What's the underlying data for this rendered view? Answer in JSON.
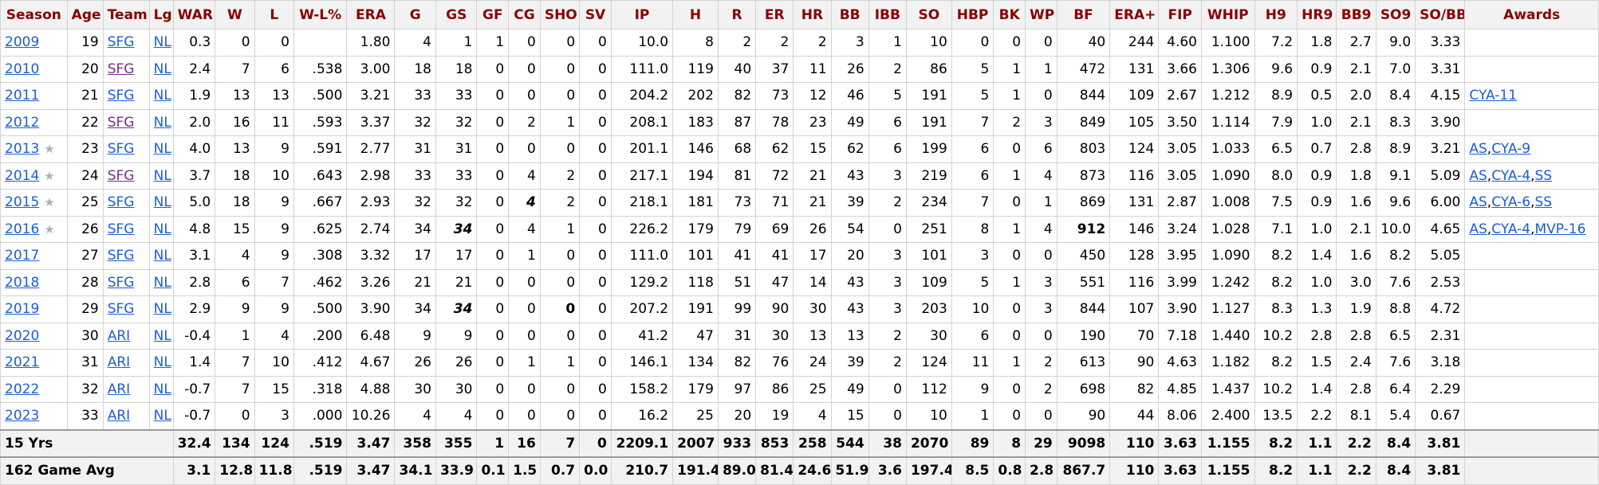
{
  "columns": [
    "Season",
    "Age",
    "Team",
    "Lg",
    "WAR",
    "W",
    "L",
    "W-L%",
    "ERA",
    "G",
    "GS",
    "GF",
    "CG",
    "SHO",
    "SV",
    "IP",
    "H",
    "R",
    "ER",
    "HR",
    "BB",
    "IBB",
    "SO",
    "HBP",
    "BK",
    "WP",
    "BF",
    "ERA+",
    "FIP",
    "WHIP",
    "H9",
    "HR9",
    "BB9",
    "SO9",
    "SO/BB",
    "Awards"
  ],
  "rows": [
    {
      "season": "2009",
      "allstar": false,
      "age": "19",
      "team": "SFG",
      "team_visited": false,
      "lg": "NL",
      "war": "0.3",
      "w": "0",
      "l": "0",
      "wlp": "",
      "era": "1.80",
      "g": "4",
      "gs": "1",
      "gf": "1",
      "cg": "0",
      "sho": "0",
      "sv": "0",
      "ip": "10.0",
      "h": "8",
      "r": "2",
      "er": "2",
      "hr": "2",
      "bb": "3",
      "ibb": "1",
      "so": "10",
      "hbp": "0",
      "bk": "0",
      "wp": "0",
      "bf": "40",
      "eraplus": "244",
      "fip": "4.60",
      "whip": "1.100",
      "h9": "7.2",
      "hr9": "1.8",
      "bb9": "2.7",
      "so9": "9.0",
      "sobb": "3.33",
      "awards": []
    },
    {
      "season": "2010",
      "allstar": false,
      "age": "20",
      "team": "SFG",
      "team_visited": true,
      "lg": "NL",
      "war": "2.4",
      "w": "7",
      "l": "6",
      "wlp": ".538",
      "era": "3.00",
      "g": "18",
      "gs": "18",
      "gf": "0",
      "cg": "0",
      "sho": "0",
      "sv": "0",
      "ip": "111.0",
      "h": "119",
      "r": "40",
      "er": "37",
      "hr": "11",
      "bb": "26",
      "ibb": "2",
      "so": "86",
      "hbp": "5",
      "bk": "1",
      "wp": "1",
      "bf": "472",
      "eraplus": "131",
      "fip": "3.66",
      "whip": "1.306",
      "h9": "9.6",
      "hr9": "0.9",
      "bb9": "2.1",
      "so9": "7.0",
      "sobb": "3.31",
      "awards": []
    },
    {
      "season": "2011",
      "allstar": false,
      "age": "21",
      "team": "SFG",
      "team_visited": false,
      "lg": "NL",
      "war": "1.9",
      "w": "13",
      "l": "13",
      "wlp": ".500",
      "era": "3.21",
      "g": "33",
      "gs": "33",
      "gf": "0",
      "cg": "0",
      "sho": "0",
      "sv": "0",
      "ip": "204.2",
      "h": "202",
      "r": "82",
      "er": "73",
      "hr": "12",
      "bb": "46",
      "ibb": "5",
      "so": "191",
      "hbp": "5",
      "bk": "1",
      "wp": "0",
      "bf": "844",
      "eraplus": "109",
      "fip": "2.67",
      "whip": "1.212",
      "h9": "8.9",
      "hr9": "0.5",
      "bb9": "2.0",
      "so9": "8.4",
      "sobb": "4.15",
      "awards": [
        "CYA-11"
      ]
    },
    {
      "season": "2012",
      "allstar": false,
      "age": "22",
      "team": "SFG",
      "team_visited": true,
      "lg": "NL",
      "war": "2.0",
      "w": "16",
      "l": "11",
      "wlp": ".593",
      "era": "3.37",
      "g": "32",
      "gs": "32",
      "gf": "0",
      "cg": "2",
      "sho": "1",
      "sv": "0",
      "ip": "208.1",
      "h": "183",
      "r": "87",
      "er": "78",
      "hr": "23",
      "bb": "49",
      "ibb": "6",
      "so": "191",
      "hbp": "7",
      "bk": "2",
      "wp": "3",
      "bf": "849",
      "eraplus": "105",
      "fip": "3.50",
      "whip": "1.114",
      "h9": "7.9",
      "hr9": "1.0",
      "bb9": "2.1",
      "so9": "8.3",
      "sobb": "3.90",
      "awards": []
    },
    {
      "season": "2013",
      "allstar": true,
      "age": "23",
      "team": "SFG",
      "team_visited": false,
      "lg": "NL",
      "war": "4.0",
      "w": "13",
      "l": "9",
      "wlp": ".591",
      "era": "2.77",
      "g": "31",
      "gs": "31",
      "gf": "0",
      "cg": "0",
      "sho": "0",
      "sv": "0",
      "ip": "201.1",
      "h": "146",
      "r": "68",
      "er": "62",
      "hr": "15",
      "bb": "62",
      "ibb": "6",
      "so": "199",
      "hbp": "6",
      "bk": "0",
      "wp": "6",
      "bf": "803",
      "eraplus": "124",
      "fip": "3.05",
      "whip": "1.033",
      "h9": "6.5",
      "hr9": "0.7",
      "bb9": "2.8",
      "so9": "8.9",
      "sobb": "3.21",
      "awards": [
        "AS",
        "CYA-9"
      ]
    },
    {
      "season": "2014",
      "allstar": true,
      "age": "24",
      "team": "SFG",
      "team_visited": true,
      "lg": "NL",
      "war": "3.7",
      "w": "18",
      "l": "10",
      "wlp": ".643",
      "era": "2.98",
      "g": "33",
      "gs": "33",
      "gf": "0",
      "cg": "4",
      "sho": "2",
      "sv": "0",
      "ip": "217.1",
      "h": "194",
      "r": "81",
      "er": "72",
      "hr": "21",
      "bb": "43",
      "ibb": "3",
      "so": "219",
      "hbp": "6",
      "bk": "1",
      "wp": "4",
      "bf": "873",
      "eraplus": "116",
      "fip": "3.05",
      "whip": "1.090",
      "h9": "8.0",
      "hr9": "0.9",
      "bb9": "1.8",
      "so9": "9.1",
      "sobb": "5.09",
      "awards": [
        "AS",
        "CYA-4",
        "SS"
      ]
    },
    {
      "season": "2015",
      "allstar": true,
      "age": "25",
      "team": "SFG",
      "team_visited": false,
      "lg": "NL",
      "war": "5.0",
      "w": "18",
      "l": "9",
      "wlp": ".667",
      "era": "2.93",
      "g": "32",
      "gs": "32",
      "gf": "0",
      "cg": "4",
      "sho": "2",
      "sv": "0",
      "ip": "218.1",
      "h": "181",
      "r": "73",
      "er": "71",
      "hr": "21",
      "bb": "39",
      "ibb": "2",
      "so": "234",
      "hbp": "7",
      "bk": "0",
      "wp": "1",
      "bf": "869",
      "eraplus": "131",
      "fip": "2.87",
      "whip": "1.008",
      "h9": "7.5",
      "hr9": "0.9",
      "bb9": "1.6",
      "so9": "9.6",
      "sobb": "6.00",
      "awards": [
        "AS",
        "CYA-6",
        "SS"
      ]
    },
    {
      "season": "2016",
      "allstar": true,
      "age": "26",
      "team": "SFG",
      "team_visited": false,
      "lg": "NL",
      "war": "4.8",
      "w": "15",
      "l": "9",
      "wlp": ".625",
      "era": "2.74",
      "g": "34",
      "gs": "34",
      "gf": "0",
      "cg": "4",
      "sho": "1",
      "sv": "0",
      "ip": "226.2",
      "h": "179",
      "r": "79",
      "er": "69",
      "hr": "26",
      "bb": "54",
      "ibb": "0",
      "so": "251",
      "hbp": "8",
      "bk": "1",
      "wp": "4",
      "bf": "912",
      "eraplus": "146",
      "fip": "3.24",
      "whip": "1.028",
      "h9": "7.1",
      "hr9": "1.0",
      "bb9": "2.1",
      "so9": "10.0",
      "sobb": "4.65",
      "awards": [
        "AS",
        "CYA-4",
        "MVP-16"
      ]
    },
    {
      "season": "2017",
      "allstar": false,
      "age": "27",
      "team": "SFG",
      "team_visited": false,
      "lg": "NL",
      "war": "3.1",
      "w": "4",
      "l": "9",
      "wlp": ".308",
      "era": "3.32",
      "g": "17",
      "gs": "17",
      "gf": "0",
      "cg": "1",
      "sho": "0",
      "sv": "0",
      "ip": "111.0",
      "h": "101",
      "r": "41",
      "er": "41",
      "hr": "17",
      "bb": "20",
      "ibb": "3",
      "so": "101",
      "hbp": "3",
      "bk": "0",
      "wp": "0",
      "bf": "450",
      "eraplus": "128",
      "fip": "3.95",
      "whip": "1.090",
      "h9": "8.2",
      "hr9": "1.4",
      "bb9": "1.6",
      "so9": "8.2",
      "sobb": "5.05",
      "awards": []
    },
    {
      "season": "2018",
      "allstar": false,
      "age": "28",
      "team": "SFG",
      "team_visited": false,
      "lg": "NL",
      "war": "2.8",
      "w": "6",
      "l": "7",
      "wlp": ".462",
      "era": "3.26",
      "g": "21",
      "gs": "21",
      "gf": "0",
      "cg": "0",
      "sho": "0",
      "sv": "0",
      "ip": "129.2",
      "h": "118",
      "r": "51",
      "er": "47",
      "hr": "14",
      "bb": "43",
      "ibb": "3",
      "so": "109",
      "hbp": "5",
      "bk": "1",
      "wp": "3",
      "bf": "551",
      "eraplus": "116",
      "fip": "3.99",
      "whip": "1.242",
      "h9": "8.2",
      "hr9": "1.0",
      "bb9": "3.0",
      "so9": "7.6",
      "sobb": "2.53",
      "awards": []
    },
    {
      "season": "2019",
      "allstar": false,
      "age": "29",
      "team": "SFG",
      "team_visited": false,
      "lg": "NL",
      "war": "2.9",
      "w": "9",
      "l": "9",
      "wlp": ".500",
      "era": "3.90",
      "g": "34",
      "gs": "34",
      "gf": "0",
      "cg": "0",
      "sho": "0",
      "sv": "0",
      "ip": "207.2",
      "h": "191",
      "r": "99",
      "er": "90",
      "hr": "30",
      "bb": "43",
      "ibb": "3",
      "so": "203",
      "hbp": "10",
      "bk": "0",
      "wp": "3",
      "bf": "844",
      "eraplus": "107",
      "fip": "3.90",
      "whip": "1.127",
      "h9": "8.3",
      "hr9": "1.3",
      "bb9": "1.9",
      "so9": "8.8",
      "sobb": "4.72",
      "awards": []
    },
    {
      "season": "2020",
      "allstar": false,
      "age": "30",
      "team": "ARI",
      "team_visited": false,
      "lg": "NL",
      "war": "-0.4",
      "w": "1",
      "l": "4",
      "wlp": ".200",
      "era": "6.48",
      "g": "9",
      "gs": "9",
      "gf": "0",
      "cg": "0",
      "sho": "0",
      "sv": "0",
      "ip": "41.2",
      "h": "47",
      "r": "31",
      "er": "30",
      "hr": "13",
      "bb": "13",
      "ibb": "2",
      "so": "30",
      "hbp": "6",
      "bk": "0",
      "wp": "0",
      "bf": "190",
      "eraplus": "70",
      "fip": "7.18",
      "whip": "1.440",
      "h9": "10.2",
      "hr9": "2.8",
      "bb9": "2.8",
      "so9": "6.5",
      "sobb": "2.31",
      "awards": []
    },
    {
      "season": "2021",
      "allstar": false,
      "age": "31",
      "team": "ARI",
      "team_visited": false,
      "lg": "NL",
      "war": "1.4",
      "w": "7",
      "l": "10",
      "wlp": ".412",
      "era": "4.67",
      "g": "26",
      "gs": "26",
      "gf": "0",
      "cg": "1",
      "sho": "1",
      "sv": "0",
      "ip": "146.1",
      "h": "134",
      "r": "82",
      "er": "76",
      "hr": "24",
      "bb": "39",
      "ibb": "2",
      "so": "124",
      "hbp": "11",
      "bk": "1",
      "wp": "2",
      "bf": "613",
      "eraplus": "90",
      "fip": "4.63",
      "whip": "1.182",
      "h9": "8.2",
      "hr9": "1.5",
      "bb9": "2.4",
      "so9": "7.6",
      "sobb": "3.18",
      "awards": []
    },
    {
      "season": "2022",
      "allstar": false,
      "age": "32",
      "team": "ARI",
      "team_visited": false,
      "lg": "NL",
      "war": "-0.7",
      "w": "7",
      "l": "15",
      "wlp": ".318",
      "era": "4.88",
      "g": "30",
      "gs": "30",
      "gf": "0",
      "cg": "0",
      "sho": "0",
      "sv": "0",
      "ip": "158.2",
      "h": "179",
      "r": "97",
      "er": "86",
      "hr": "25",
      "bb": "49",
      "ibb": "0",
      "so": "112",
      "hbp": "9",
      "bk": "0",
      "wp": "2",
      "bf": "698",
      "eraplus": "82",
      "fip": "4.85",
      "whip": "1.437",
      "h9": "10.2",
      "hr9": "1.4",
      "bb9": "2.8",
      "so9": "6.4",
      "sobb": "2.29",
      "awards": []
    },
    {
      "season": "2023",
      "allstar": false,
      "age": "33",
      "team": "ARI",
      "team_visited": false,
      "lg": "NL",
      "war": "-0.7",
      "w": "0",
      "l": "3",
      "wlp": ".000",
      "era": "10.26",
      "g": "4",
      "gs": "4",
      "gf": "0",
      "cg": "0",
      "sho": "0",
      "sv": "0",
      "ip": "16.2",
      "h": "25",
      "r": "20",
      "er": "19",
      "hr": "4",
      "bb": "15",
      "ibb": "0",
      "so": "10",
      "hbp": "1",
      "bk": "0",
      "wp": "0",
      "bf": "90",
      "eraplus": "44",
      "fip": "8.06",
      "whip": "2.400",
      "h9": "13.5",
      "hr9": "2.2",
      "bb9": "8.1",
      "so9": "5.4",
      "sobb": "0.67",
      "awards": []
    }
  ],
  "totals": [
    {
      "label": "15 Yrs",
      "war": "32.4",
      "w": "134",
      "l": "124",
      "wlp": ".519",
      "era": "3.47",
      "g": "358",
      "gs": "355",
      "gf": "1",
      "cg": "16",
      "sho": "7",
      "sv": "0",
      "ip": "2209.1",
      "h": "2007",
      "r": "933",
      "er": "853",
      "hr": "258",
      "bb": "544",
      "ibb": "38",
      "so": "2070",
      "hbp": "89",
      "bk": "8",
      "wp": "29",
      "bf": "9098",
      "eraplus": "110",
      "fip": "3.63",
      "whip": "1.155",
      "h9": "8.2",
      "hr9": "1.1",
      "bb9": "2.2",
      "so9": "8.4",
      "sobb": "3.81"
    },
    {
      "label": "162 Game Avg",
      "war": "3.1",
      "w": "12.8",
      "l": "11.8",
      "wlp": ".519",
      "era": "3.47",
      "g": "34.1",
      "gs": "33.9",
      "gf": "0.1",
      "cg": "1.5",
      "sho": "0.7",
      "sv": "0.0",
      "ip": "210.7",
      "h": "191.4",
      "r": "89.0",
      "er": "81.4",
      "hr": "24.6",
      "bb": "51.9",
      "ibb": "3.6",
      "so": "197.4",
      "hbp": "8.5",
      "bk": "0.8",
      "wp": "2.8",
      "bf": "867.7",
      "eraplus": "110",
      "fip": "3.63",
      "whip": "1.155",
      "h9": "8.2",
      "hr9": "1.1",
      "bb9": "2.2",
      "so9": "8.4",
      "sobb": "3.81"
    }
  ],
  "emphasis": {
    "2015": {
      "cg": "leadital"
    },
    "2016": {
      "gs": "leadital",
      "bf": "lead"
    },
    "2019": {
      "gs": "leadital",
      "sho": "lead"
    }
  },
  "colors": {
    "header_text": "#8b0000",
    "link": "#1d5dd7",
    "visited_link": "#7b2d8b",
    "header_bg": "#f2f2f2",
    "border": "#d3d3d3"
  }
}
